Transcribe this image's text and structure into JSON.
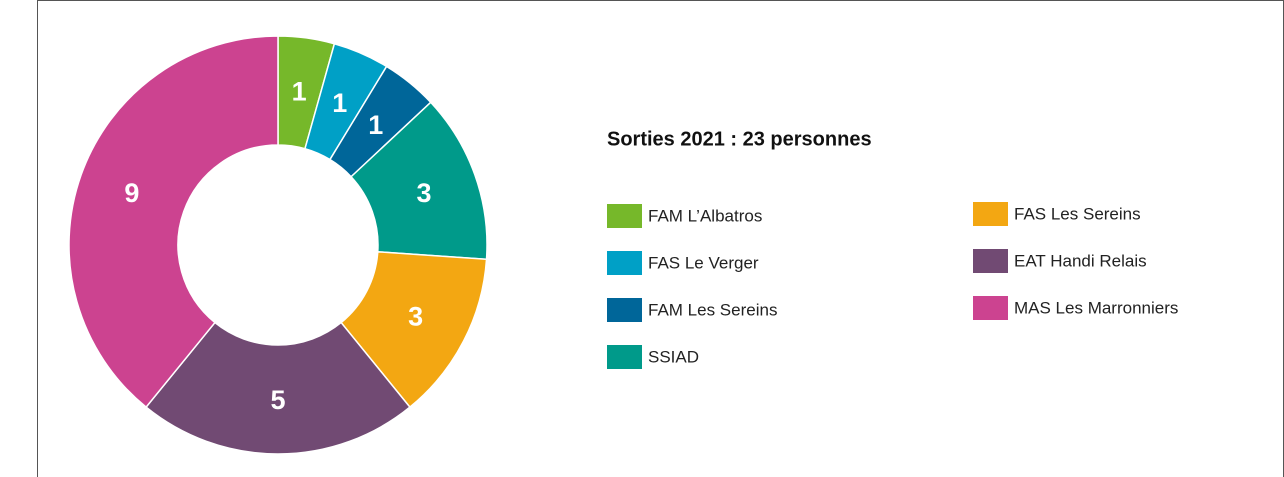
{
  "chart_data": {
    "type": "donut",
    "title": "Sorties 2021 : 23 personnes",
    "categories": [
      "FAM L’Albatros",
      "FAS Le Verger",
      "FAM Les Sereins",
      "SSIAD",
      "FAS Les Sereins",
      "EAT Handi Relais",
      "MAS Les Marronniers"
    ],
    "values": [
      1,
      1,
      1,
      3,
      3,
      5,
      9
    ],
    "colors": [
      "#76b82a",
      "#00a0c6",
      "#006699",
      "#009a8a",
      "#f3a712",
      "#714a73",
      "#cc4390"
    ]
  }
}
